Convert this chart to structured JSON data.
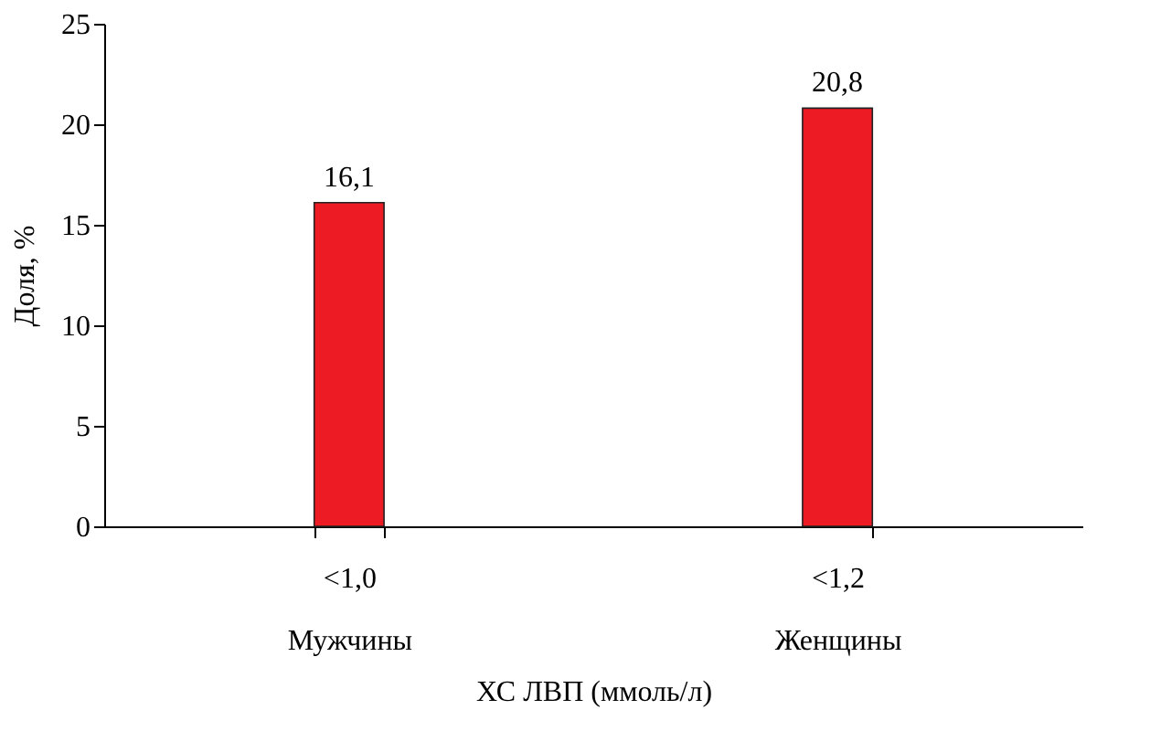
{
  "chart_data": {
    "type": "bar",
    "xlabel": "ХС ЛВП (ммоль/л)",
    "ylabel": "Доля, %",
    "categories": [
      "<1,0\nМужчины",
      "<1,2\nЖенщины"
    ],
    "values": [
      16.1,
      20.8
    ],
    "color": "#ed1c24",
    "value_labels": [
      "16,1",
      "20,8"
    ],
    "ylim": [
      0,
      25
    ],
    "yticks": [
      0,
      5,
      10,
      15,
      20,
      25
    ],
    "grid": false
  }
}
